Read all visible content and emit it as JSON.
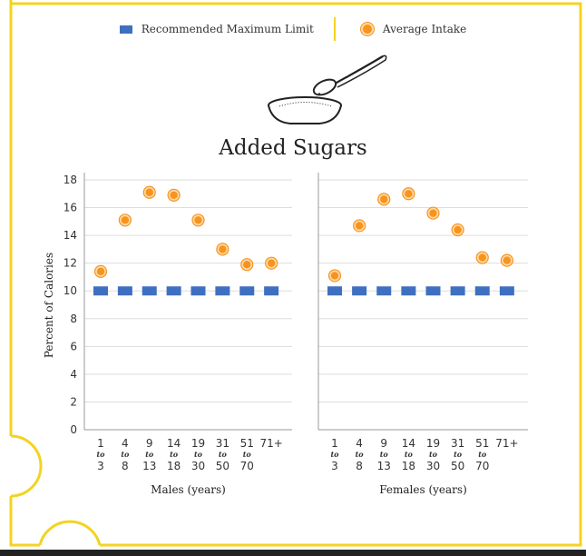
{
  "chart_data": {
    "type": "scatter",
    "title": "Added Sugars",
    "ylabel": "Percent of Calories",
    "ylim": [
      0,
      18
    ],
    "yticks": [
      0,
      2,
      4,
      6,
      8,
      10,
      12,
      14,
      16,
      18
    ],
    "grid": true,
    "legend": {
      "placement": "top-center",
      "entries": [
        "Recommended Maximum Limit",
        "Average Intake"
      ]
    },
    "categories": [
      {
        "top": "1",
        "mid": "to",
        "bot": "3"
      },
      {
        "top": "4",
        "mid": "to",
        "bot": "8"
      },
      {
        "top": "9",
        "mid": "to",
        "bot": "13"
      },
      {
        "top": "14",
        "mid": "to",
        "bot": "18"
      },
      {
        "top": "19",
        "mid": "to",
        "bot": "30"
      },
      {
        "top": "31",
        "mid": "to",
        "bot": "50"
      },
      {
        "top": "51",
        "mid": "to",
        "bot": "70"
      },
      {
        "top": "71+",
        "mid": "",
        "bot": ""
      }
    ],
    "panels": [
      {
        "xlabel": "Males (years)",
        "series": [
          {
            "name": "Recommended Maximum Limit",
            "values": [
              10,
              10,
              10,
              10,
              10,
              10,
              10,
              10
            ]
          },
          {
            "name": "Average Intake",
            "values": [
              11.4,
              15.1,
              17.1,
              16.9,
              15.1,
              13.0,
              11.9,
              12.0
            ]
          }
        ]
      },
      {
        "xlabel": "Females (years)",
        "series": [
          {
            "name": "Recommended Maximum Limit",
            "values": [
              10,
              10,
              10,
              10,
              10,
              10,
              10,
              10
            ]
          },
          {
            "name": "Average Intake",
            "values": [
              11.1,
              14.7,
              16.6,
              17.0,
              15.6,
              14.4,
              12.4,
              12.2
            ]
          }
        ]
      }
    ]
  },
  "colors": {
    "limit": "#3f6fc0",
    "intake": "#f7941d",
    "intake_ring": "#fdd9a8",
    "frame": "#f4d320",
    "grid": "#dddddd"
  },
  "icons": {
    "illustration": "spoon-sugar-bowl-icon"
  }
}
